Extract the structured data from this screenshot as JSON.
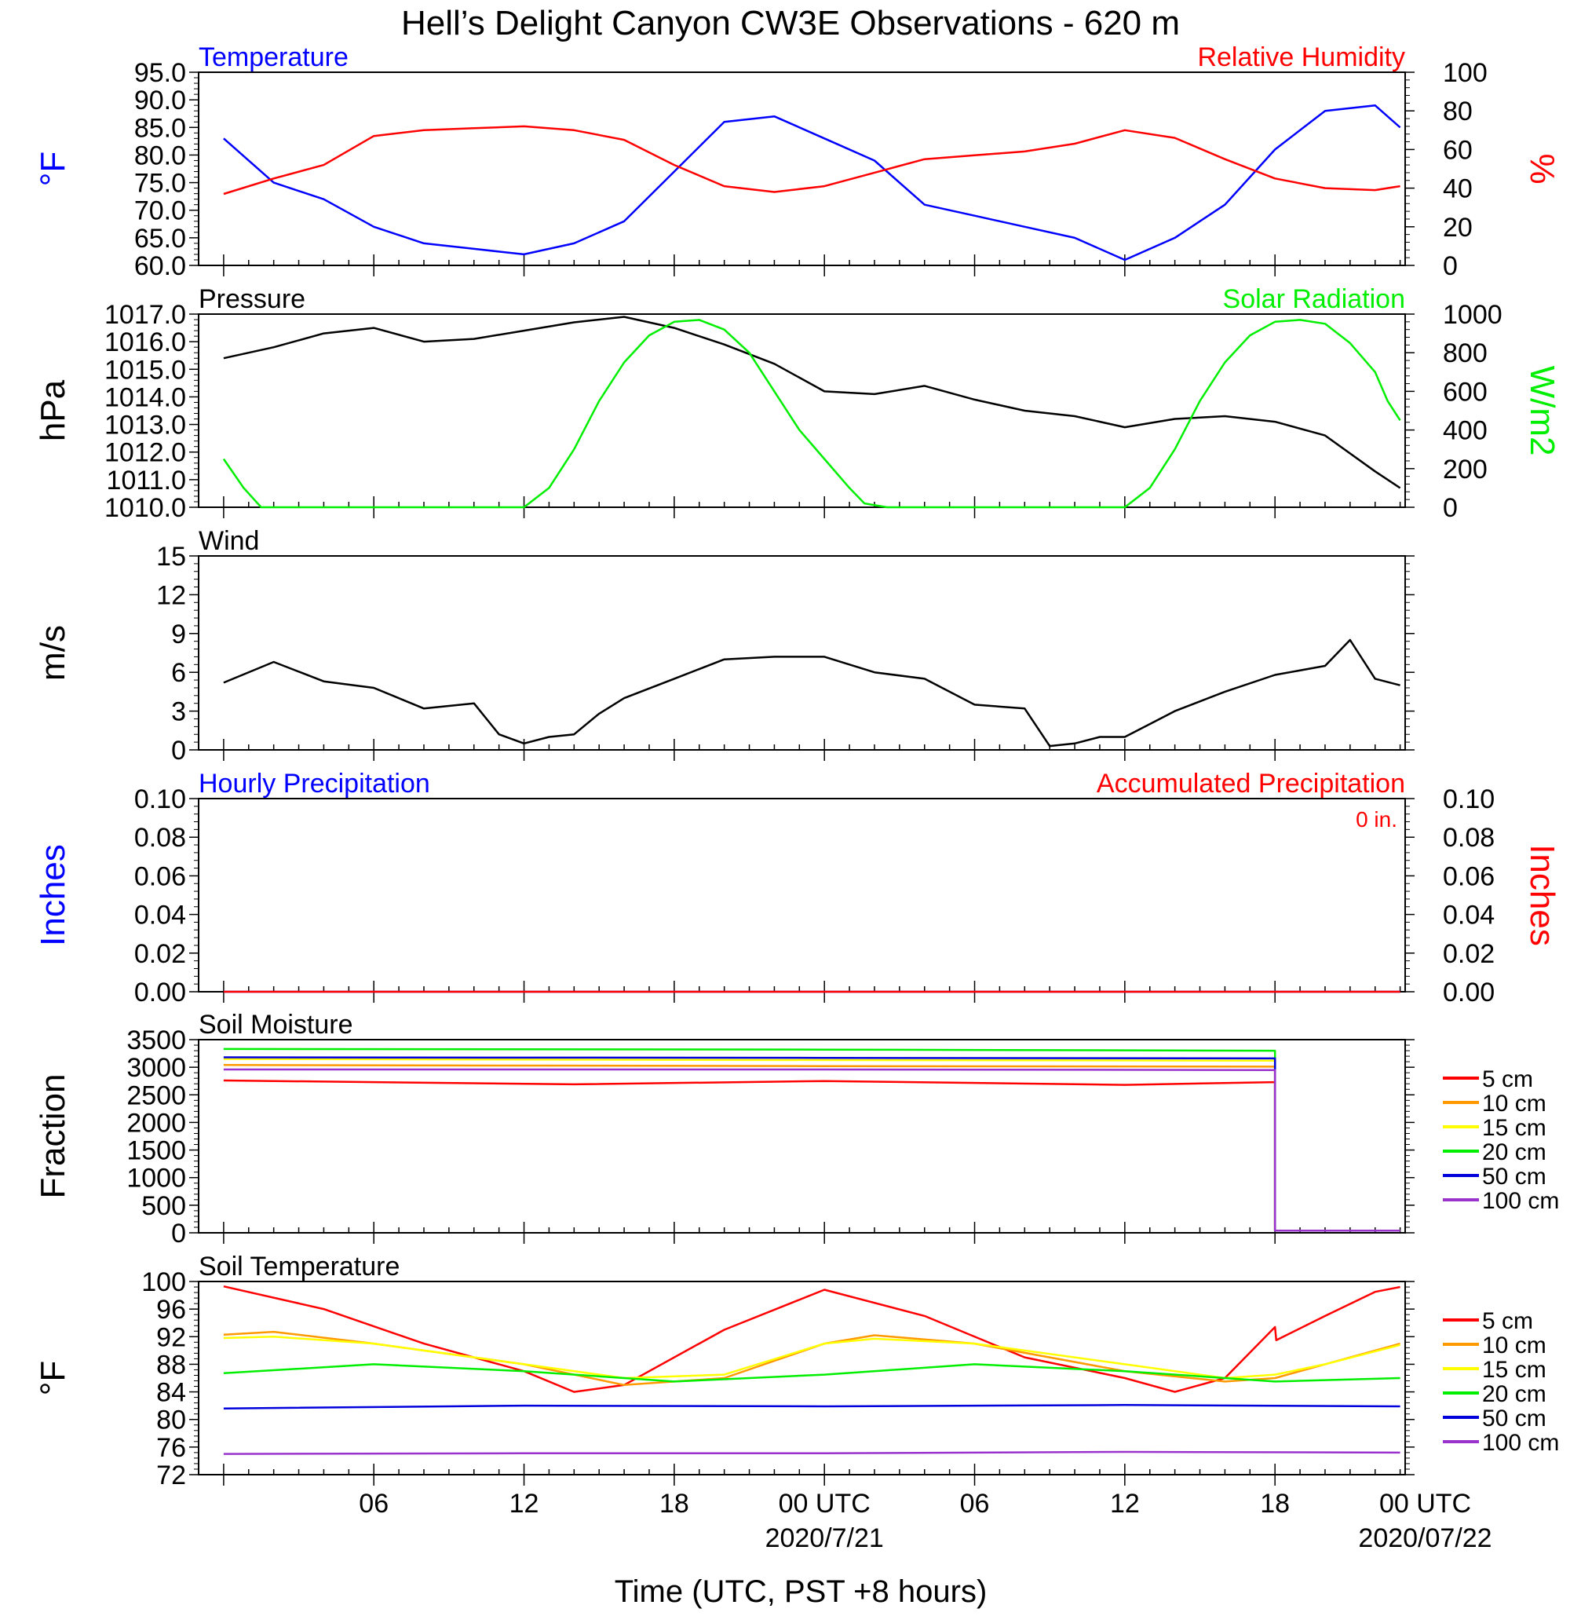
{
  "title": "Hell’s Delight Canyon CW3E Observations - 620 m",
  "x_axis": {
    "title": "Time (UTC, PST +8 hours)",
    "range_hours": [
      -1,
      47.2
    ],
    "major_ticks": [
      6,
      12,
      18,
      24,
      30,
      36,
      42,
      48
    ],
    "tick_labels": [
      {
        "hour": 6,
        "label": "06"
      },
      {
        "hour": 12,
        "label": "12"
      },
      {
        "hour": 18,
        "label": "18"
      },
      {
        "hour": 24,
        "label": "00 UTC",
        "date": "2020/7/21"
      },
      {
        "hour": 30,
        "label": "06"
      },
      {
        "hour": 36,
        "label": "12"
      },
      {
        "hour": 42,
        "label": "18"
      },
      {
        "hour": 48,
        "label": "00 UTC",
        "date": "2020/07/22"
      }
    ]
  },
  "legend": {
    "placement": "right",
    "entries": [
      {
        "label": "5 cm",
        "color": "#ff0000"
      },
      {
        "label": "10 cm",
        "color": "#ff9900"
      },
      {
        "label": "15 cm",
        "color": "#ffff00"
      },
      {
        "label": "20 cm",
        "color": "#00ee00"
      },
      {
        "label": "50 cm",
        "color": "#0000dd"
      },
      {
        "label": "100 cm",
        "color": "#9933cc"
      }
    ]
  },
  "chart_data": [
    {
      "type": "line",
      "panel": "temperature-humidity",
      "left_title": "Temperature",
      "left_title_color": "#0000ff",
      "right_title": "Relative Humidity",
      "right_title_color": "#ff0000",
      "ylabel": "°F",
      "y2label": "%",
      "ylim": [
        60,
        95
      ],
      "y2lim": [
        0,
        100
      ],
      "yticks": [
        "95.0",
        "90.0",
        "85.0",
        "80.0",
        "75.0",
        "70.0",
        "65.0",
        "60.0"
      ],
      "y2ticks": [
        "100",
        "80",
        "60",
        "40",
        "20",
        "0"
      ],
      "series": [
        {
          "axis": "left",
          "color": "#0000ff",
          "x": [
            0,
            2,
            4,
            6,
            8,
            10,
            12,
            14,
            16,
            18,
            20,
            22,
            24,
            26,
            28,
            30,
            32,
            34,
            36,
            38,
            40,
            42,
            44,
            46,
            47
          ],
          "y": [
            83,
            75,
            72,
            67,
            64,
            63,
            62,
            64,
            68,
            77,
            86,
            87,
            83,
            79,
            71,
            69,
            67,
            65,
            61,
            65,
            71,
            81,
            88,
            89,
            85
          ]
        },
        {
          "axis": "right",
          "color": "#ff0000",
          "x": [
            0,
            2,
            4,
            6,
            8,
            10,
            12,
            14,
            16,
            18,
            20,
            22,
            24,
            26,
            28,
            30,
            32,
            34,
            36,
            38,
            40,
            42,
            44,
            46,
            47
          ],
          "y": [
            37,
            45,
            52,
            67,
            70,
            71,
            72,
            70,
            65,
            52,
            41,
            38,
            41,
            48,
            55,
            57,
            59,
            63,
            70,
            66,
            55,
            45,
            40,
            39,
            41
          ]
        }
      ]
    },
    {
      "type": "line",
      "panel": "pressure-solar",
      "left_title": "Pressure",
      "left_title_color": "#000000",
      "right_title": "Solar Radiation",
      "right_title_color": "#00ee00",
      "ylabel": "hPa",
      "y2label": "W/m2",
      "ylim": [
        1010,
        1017
      ],
      "y2lim": [
        0,
        1000
      ],
      "yticks": [
        "1017.0",
        "1016.0",
        "1015.0",
        "1014.0",
        "1013.0",
        "1012.0",
        "1011.0",
        "1010.0"
      ],
      "y2ticks": [
        "1000",
        "800",
        "600",
        "400",
        "200",
        "0"
      ],
      "series": [
        {
          "axis": "left",
          "color": "#000000",
          "x": [
            0,
            2,
            4,
            6,
            8,
            10,
            12,
            14,
            16,
            18,
            20,
            22,
            24,
            26,
            28,
            30,
            32,
            34,
            36,
            38,
            40,
            42,
            44,
            46,
            47
          ],
          "y": [
            1015.4,
            1015.8,
            1016.3,
            1016.5,
            1016.0,
            1016.1,
            1016.4,
            1016.7,
            1016.9,
            1016.5,
            1015.9,
            1015.2,
            1014.2,
            1014.1,
            1014.4,
            1013.9,
            1013.5,
            1013.3,
            1012.9,
            1013.2,
            1013.3,
            1013.1,
            1012.6,
            1011.3,
            1010.7
          ]
        },
        {
          "axis": "right",
          "color": "#00ee00",
          "x": [
            0,
            0.8,
            1.5,
            12,
            13,
            14,
            15,
            16,
            17,
            18,
            19,
            20,
            21,
            22,
            23,
            24,
            25,
            25.6,
            26.5,
            36,
            37,
            38,
            39,
            40,
            41,
            42,
            43,
            44,
            45,
            46,
            46.5,
            47
          ],
          "y": [
            250,
            100,
            0,
            0,
            100,
            300,
            550,
            750,
            890,
            960,
            970,
            920,
            800,
            600,
            400,
            250,
            100,
            20,
            0,
            0,
            100,
            300,
            550,
            750,
            890,
            960,
            970,
            950,
            850,
            700,
            550,
            450
          ]
        }
      ]
    },
    {
      "type": "line",
      "panel": "wind",
      "left_title": "Wind",
      "left_title_color": "#000000",
      "ylabel": "m/s",
      "ylim": [
        0,
        15
      ],
      "yticks": [
        "15",
        "12",
        "9",
        "6",
        "3",
        "0"
      ],
      "series": [
        {
          "axis": "left",
          "color": "#000000",
          "x": [
            0,
            2,
            4,
            6,
            8,
            10,
            11,
            12,
            13,
            14,
            15,
            16,
            18,
            20,
            22,
            24,
            26,
            28,
            30,
            32,
            33,
            34,
            35,
            36,
            37,
            38,
            40,
            42,
            44,
            45,
            46,
            47
          ],
          "y": [
            5.2,
            6.8,
            5.3,
            4.8,
            3.2,
            3.6,
            1.2,
            0.5,
            1.0,
            1.2,
            2.8,
            4.0,
            5.5,
            7.0,
            7.2,
            7.2,
            6.0,
            5.5,
            3.5,
            3.2,
            0.3,
            0.5,
            1.0,
            1.0,
            2.0,
            3.0,
            4.5,
            5.8,
            6.5,
            8.5,
            5.5,
            5.0
          ]
        }
      ]
    },
    {
      "type": "line",
      "panel": "precipitation",
      "left_title": "Hourly Precipitation",
      "left_title_color": "#0000ff",
      "right_title": "Accumulated Precipitation",
      "right_title_color": "#ff0000",
      "annotation": "0 in.",
      "ylabel": "Inches",
      "y2label": "Inches",
      "ylim": [
        0,
        0.1
      ],
      "y2lim": [
        0,
        0.1
      ],
      "yticks": [
        "0.10",
        "0.08",
        "0.06",
        "0.04",
        "0.02",
        "0.00"
      ],
      "y2ticks": [
        "0.10",
        "0.08",
        "0.06",
        "0.04",
        "0.02",
        "0.00"
      ],
      "series": [
        {
          "axis": "left",
          "color": "#0000ff",
          "x": [
            0,
            47
          ],
          "y": [
            0,
            0
          ]
        },
        {
          "axis": "right",
          "color": "#ff0000",
          "x": [
            0,
            47
          ],
          "y": [
            0,
            0
          ]
        }
      ]
    },
    {
      "type": "line",
      "panel": "soil-moisture",
      "left_title": "Soil Moisture",
      "left_title_color": "#000000",
      "ylabel": "Fraction",
      "ylim": [
        0,
        3500
      ],
      "yticks": [
        "3500",
        "3000",
        "2500",
        "2000",
        "1500",
        "1000",
        "500",
        "0"
      ],
      "series": [
        {
          "name": "5 cm",
          "color": "#ff0000",
          "x": [
            0,
            14,
            24,
            36,
            42,
            42,
            47
          ],
          "y": [
            2760,
            2690,
            2750,
            2680,
            2730,
            40,
            40
          ]
        },
        {
          "name": "10 cm",
          "color": "#ff9900",
          "x": [
            0,
            24,
            42,
            42,
            47
          ],
          "y": [
            3040,
            3020,
            3010,
            40,
            40
          ]
        },
        {
          "name": "15 cm",
          "color": "#ffff00",
          "x": [
            0,
            24,
            42,
            42,
            47
          ],
          "y": [
            3150,
            3130,
            3120,
            40,
            40
          ]
        },
        {
          "name": "20 cm",
          "color": "#00ee00",
          "x": [
            0,
            24,
            42,
            42,
            47
          ],
          "y": [
            3330,
            3320,
            3300,
            40,
            40
          ]
        },
        {
          "name": "50 cm",
          "color": "#0000dd",
          "x": [
            0,
            24,
            42,
            42,
            47
          ],
          "y": [
            3180,
            3170,
            3160,
            40,
            40
          ]
        },
        {
          "name": "100 cm",
          "color": "#9933cc",
          "x": [
            0,
            24,
            42,
            42,
            47
          ],
          "y": [
            2960,
            2960,
            2950,
            40,
            40
          ]
        }
      ]
    },
    {
      "type": "line",
      "panel": "soil-temperature",
      "left_title": "Soil Temperature",
      "left_title_color": "#000000",
      "ylabel": "°F",
      "ylim": [
        72,
        100
      ],
      "yticks": [
        "100",
        "96",
        "92",
        "88",
        "84",
        "80",
        "76",
        "72"
      ],
      "series": [
        {
          "name": "5 cm",
          "color": "#ff0000",
          "x": [
            0,
            4,
            8,
            12,
            14,
            16,
            20,
            24,
            28,
            32,
            36,
            38,
            40,
            42,
            42.05,
            44,
            46,
            47
          ],
          "y": [
            99.3,
            96,
            91,
            87,
            84,
            85,
            93,
            98.8,
            95,
            89,
            86,
            84,
            86,
            93.4,
            91.5,
            95,
            98.5,
            99.2
          ]
        },
        {
          "name": "10 cm",
          "color": "#ff9900",
          "x": [
            0,
            2,
            6,
            12,
            16,
            20,
            24,
            26,
            30,
            36,
            40,
            42,
            44,
            47
          ],
          "y": [
            92.3,
            92.7,
            91,
            88,
            85,
            86,
            91,
            92.2,
            91,
            87,
            85.5,
            86,
            88,
            91
          ]
        },
        {
          "name": "15 cm",
          "color": "#ffff00",
          "x": [
            0,
            2,
            6,
            12,
            16,
            20,
            24,
            26,
            30,
            36,
            40,
            42,
            44,
            47
          ],
          "y": [
            91.8,
            92,
            91,
            88,
            86,
            86.5,
            91,
            91.7,
            91,
            88,
            86,
            86.5,
            88,
            90.8
          ]
        },
        {
          "name": "20 cm",
          "color": "#00ee00",
          "x": [
            0,
            6,
            12,
            18,
            24,
            30,
            36,
            42,
            47
          ],
          "y": [
            86.7,
            88,
            87,
            85.5,
            86.5,
            88,
            87,
            85.5,
            86
          ]
        },
        {
          "name": "50 cm",
          "color": "#0000dd",
          "x": [
            0,
            12,
            24,
            36,
            47
          ],
          "y": [
            81.6,
            82,
            81.9,
            82.1,
            81.9
          ]
        },
        {
          "name": "100 cm",
          "color": "#9933cc",
          "x": [
            0,
            12,
            24,
            36,
            47
          ],
          "y": [
            75,
            75.1,
            75.1,
            75.3,
            75.2
          ]
        }
      ]
    }
  ]
}
